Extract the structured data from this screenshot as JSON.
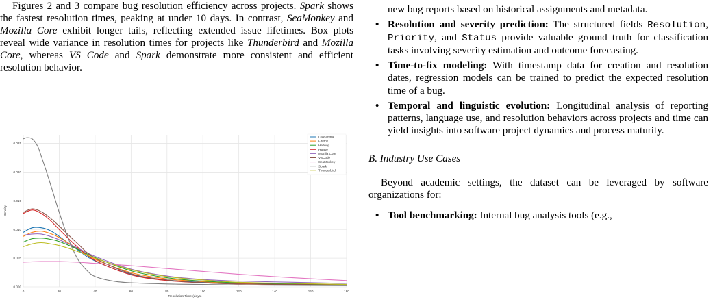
{
  "left_paragraph": {
    "s1": "Figures 2 and 3 compare bug resolution efficiency across projects. ",
    "e1": "Spark",
    "s2": " shows the fastest resolution times, peaking at under 10 days. In contrast, ",
    "e2": "SeaMonkey",
    "s3": " and ",
    "e3": "Mozilla Core",
    "s4": " exhibit longer tails, reflecting extended issue lifetimes. Box plots reveal wide variance in resolution times for projects like ",
    "e4": "Thunderbird",
    "s5": " and ",
    "e5": "Mozilla Core",
    "s6": ", whereas ",
    "e6": "VS Code",
    "s7": " and ",
    "e7": "Spark",
    "s8": " demonstrate more consistent and efficient resolution behavior."
  },
  "right": {
    "continuation": "new bug reports based on historical assignments and metadata.",
    "bullets": [
      {
        "bold": "Resolution and severity prediction:",
        "t1": " The structured fields ",
        "m1": "Resolution",
        "t2": ", ",
        "m2": "Priority",
        "t3": ", and ",
        "m3": "Status",
        "t4": " provide valuable ground truth for classification tasks involving severity estimation and outcome forecasting."
      },
      {
        "bold": "Time-to-fix modeling:",
        "t1": " With timestamp data for creation and resolution dates, regression models can be trained to predict the expected resolution time of a bug."
      },
      {
        "bold": "Temporal and linguistic evolution:",
        "t1": " Longitudinal analysis of reporting patterns, language use, and resolution behaviors across projects and time can yield insights into software project dynamics and process maturity."
      }
    ],
    "section_heading": "B. Industry Use Cases",
    "industry_para": "Beyond academic settings, the dataset can be leveraged by software organizations for:",
    "last_bullet_bold": "Tool benchmarking:",
    "last_bullet_text": " Internal bug analysis tools (e.g.,"
  },
  "chart_data": {
    "type": "line",
    "title": "",
    "xlabel": "Resolution Time (days)",
    "ylabel": "Density",
    "xlim": [
      0,
      180
    ],
    "ylim": [
      0,
      0.0265
    ],
    "xticks": [
      0,
      20,
      40,
      60,
      80,
      100,
      120,
      140,
      160,
      180
    ],
    "yticks": [
      0.0,
      0.005,
      0.01,
      0.015,
      0.02,
      0.025
    ],
    "grid": true,
    "legend_position": "top-right",
    "series": [
      {
        "name": "Cassandra",
        "color": "#1f77b4",
        "x": [
          0,
          5,
          10,
          15,
          20,
          30,
          40,
          60,
          80,
          100,
          120,
          150,
          180
        ],
        "y": [
          0.0095,
          0.0103,
          0.0103,
          0.0098,
          0.0088,
          0.0065,
          0.0045,
          0.0022,
          0.0012,
          0.0008,
          0.0006,
          0.0005,
          0.0004
        ]
      },
      {
        "name": "Firefox",
        "color": "#ff7f0e",
        "x": [
          0,
          5,
          10,
          15,
          20,
          30,
          40,
          60,
          80,
          100,
          120,
          150,
          180
        ],
        "y": [
          0.0088,
          0.0095,
          0.0097,
          0.0093,
          0.0086,
          0.0067,
          0.0048,
          0.0025,
          0.0014,
          0.0009,
          0.0006,
          0.0005,
          0.0004
        ]
      },
      {
        "name": "Hadoop",
        "color": "#2ca02c",
        "x": [
          0,
          5,
          10,
          15,
          20,
          30,
          40,
          60,
          80,
          100,
          120,
          150,
          180
        ],
        "y": [
          0.0078,
          0.0084,
          0.0085,
          0.0083,
          0.0079,
          0.0066,
          0.0051,
          0.0028,
          0.0016,
          0.001,
          0.0007,
          0.0005,
          0.0004
        ]
      },
      {
        "name": "HBase",
        "color": "#d62728",
        "x": [
          0,
          5,
          10,
          15,
          20,
          30,
          40,
          60,
          80,
          100,
          120,
          150,
          180
        ],
        "y": [
          0.0128,
          0.0134,
          0.0128,
          0.0116,
          0.01,
          0.007,
          0.0046,
          0.0021,
          0.0011,
          0.0007,
          0.0005,
          0.0004,
          0.0003
        ]
      },
      {
        "name": "Mozilla Core",
        "color": "#9467bd",
        "x": [
          0,
          5,
          10,
          15,
          20,
          30,
          40,
          60,
          80,
          100,
          120,
          150,
          180
        ],
        "y": [
          0.009,
          0.0092,
          0.0092,
          0.0088,
          0.0082,
          0.0068,
          0.0053,
          0.0031,
          0.0019,
          0.0013,
          0.001,
          0.0008,
          0.0006
        ]
      },
      {
        "name": "VSCode",
        "color": "#8c564b",
        "x": [
          0,
          5,
          10,
          15,
          20,
          30,
          40,
          60,
          80,
          100,
          120,
          150,
          180
        ],
        "y": [
          0.013,
          0.0136,
          0.0131,
          0.012,
          0.0106,
          0.0076,
          0.005,
          0.0023,
          0.0012,
          0.0007,
          0.0005,
          0.0004,
          0.0003
        ]
      },
      {
        "name": "SeaMonkey",
        "color": "#e377c2",
        "x": [
          0,
          10,
          20,
          30,
          40,
          60,
          80,
          100,
          120,
          150,
          180
        ],
        "y": [
          0.0043,
          0.0044,
          0.0044,
          0.0043,
          0.0041,
          0.0037,
          0.0032,
          0.0027,
          0.0022,
          0.0016,
          0.0011
        ]
      },
      {
        "name": "Spark",
        "color": "#7f7f7f",
        "x": [
          0,
          2,
          5,
          8,
          10,
          13,
          16,
          20,
          25,
          30,
          35,
          40,
          50,
          60,
          80,
          100,
          130,
          180
        ],
        "y": [
          0.0258,
          0.026,
          0.0258,
          0.0245,
          0.0228,
          0.02,
          0.017,
          0.013,
          0.0085,
          0.005,
          0.003,
          0.0018,
          0.001,
          0.0007,
          0.0005,
          0.0004,
          0.0003,
          0.0002
        ]
      },
      {
        "name": "Thunderbird",
        "color": "#bcbd22",
        "x": [
          0,
          5,
          10,
          15,
          20,
          30,
          40,
          60,
          80,
          100,
          120,
          150,
          180
        ],
        "y": [
          0.007,
          0.0075,
          0.0077,
          0.0075,
          0.0072,
          0.0062,
          0.005,
          0.003,
          0.0018,
          0.0012,
          0.0008,
          0.0006,
          0.0004
        ]
      }
    ]
  }
}
